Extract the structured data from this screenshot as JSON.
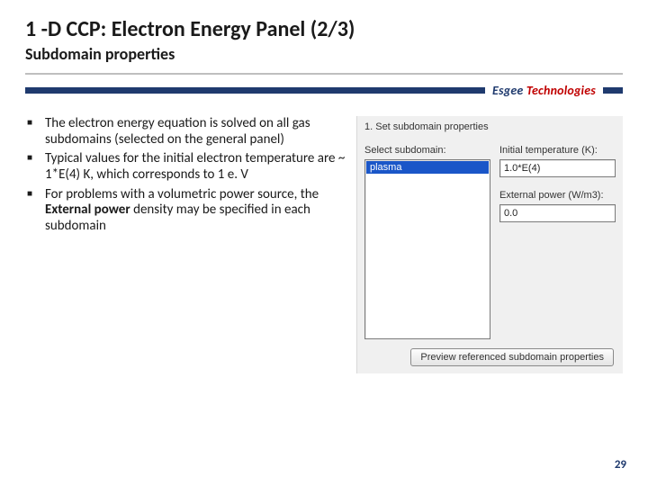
{
  "header": {
    "title": "1 -D CCP: Electron Energy Panel (2/3)",
    "subtitle": "Subdomain properties"
  },
  "brand": {
    "part1": "Esgee",
    "part2": " Technologies"
  },
  "bullets": [
    {
      "text_pre": "The electron energy equation is solved on all gas subdomains (selected on the general panel)"
    },
    {
      "text_pre": "Typical values for the initial electron temperature are ~ 1*E(4) K, which corresponds to 1 e. V"
    },
    {
      "text_pre": "For problems with a volumetric power source, the ",
      "bold": "External power",
      "text_post": " density may be specified in each subdomain"
    }
  ],
  "ui": {
    "step_label": "1. Set subdomain properties",
    "select_label": "Select subdomain:",
    "list_items": [
      "plasma"
    ],
    "fields": [
      {
        "label": "Initial temperature (K):",
        "value": "1.0*E(4)"
      },
      {
        "label": "External power (W/m3):",
        "value": "0.0"
      }
    ],
    "preview_button": "Preview referenced subdomain properties"
  },
  "page_number": "29"
}
